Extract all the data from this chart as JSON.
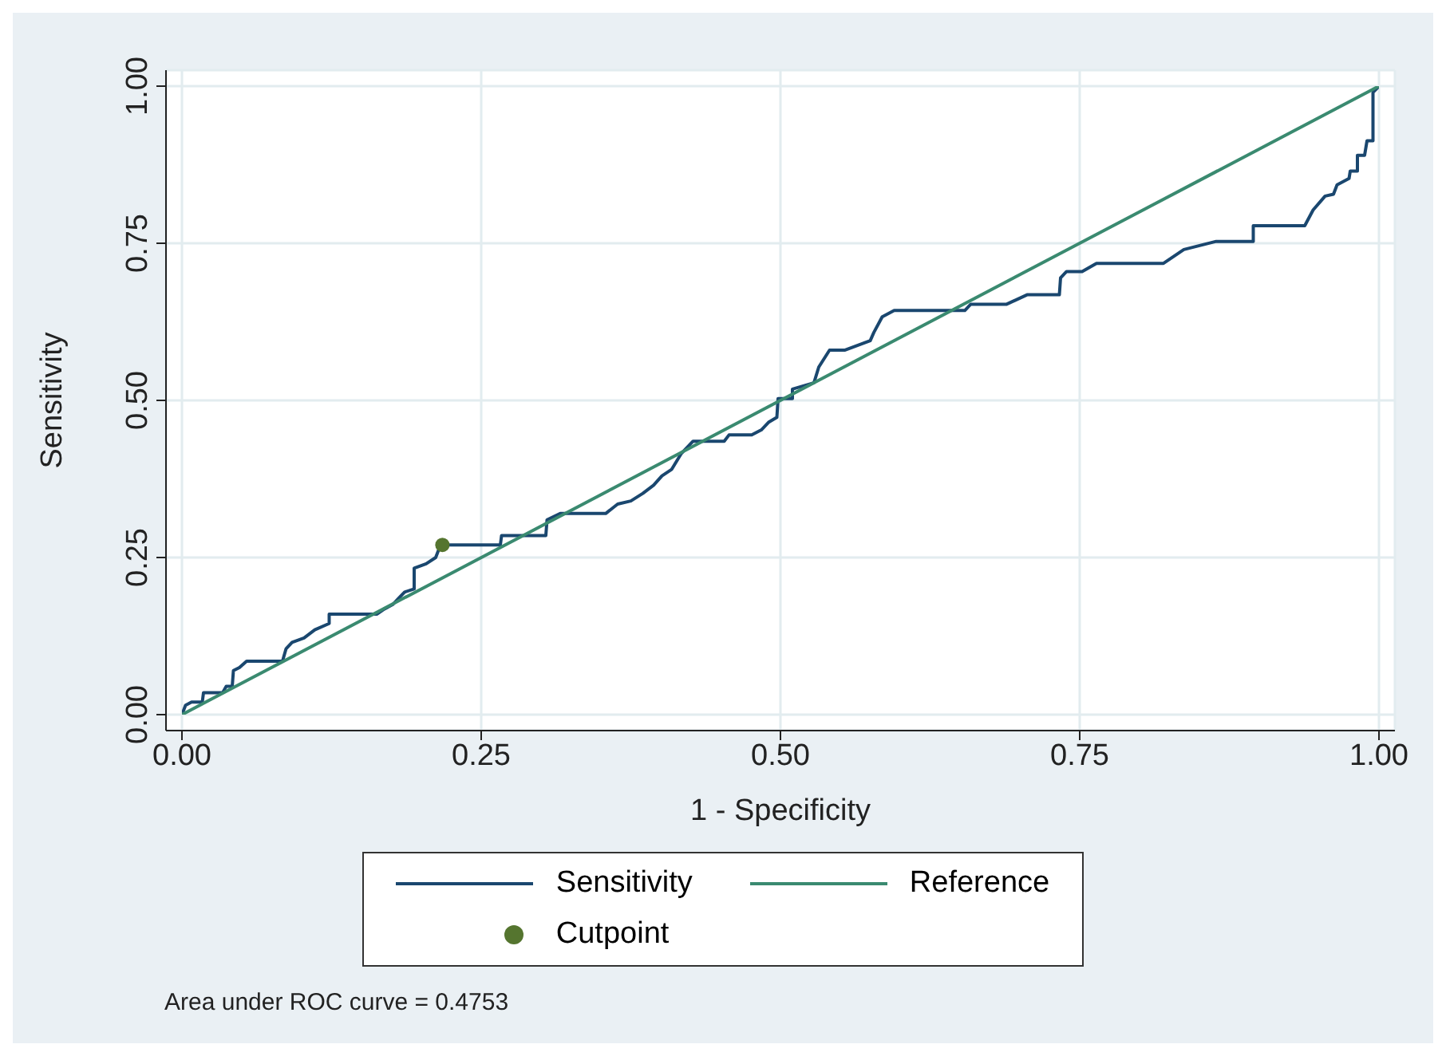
{
  "chart_data": {
    "type": "line",
    "xlabel": "1 - Specificity",
    "ylabel": "Sensitivity",
    "annotations": [
      "Area under ROC curve = 0.4753"
    ],
    "xlim": [
      0,
      1
    ],
    "ylim": [
      0,
      1
    ],
    "xticks": [
      {
        "value": 0,
        "label": "0.00"
      },
      {
        "value": 0.25,
        "label": "0.25"
      },
      {
        "value": 0.5,
        "label": "0.50"
      },
      {
        "value": 0.75,
        "label": "0.75"
      },
      {
        "value": 1,
        "label": "1.00"
      }
    ],
    "yticks": [
      {
        "value": 0,
        "label": "0.00"
      },
      {
        "value": 0.25,
        "label": "0.25"
      },
      {
        "value": 0.5,
        "label": "0.50"
      },
      {
        "value": 0.75,
        "label": "0.75"
      },
      {
        "value": 1,
        "label": "1.00"
      }
    ],
    "grid": true,
    "legend": "bottom",
    "marker": "none",
    "line_style": "solid",
    "series": [
      {
        "name": "Sensitivity",
        "color": "#1a476f",
        "x": [
          0,
          0.003,
          0.008,
          0.017,
          0.018,
          0.034,
          0.037,
          0.042,
          0.043,
          0.048,
          0.054,
          0.084,
          0.087,
          0.092,
          0.102,
          0.111,
          0.123,
          0.123,
          0.163,
          0.169,
          0.176,
          0.181,
          0.186,
          0.194,
          0.194,
          0.204,
          0.212,
          0.216,
          0.266,
          0.267,
          0.304,
          0.305,
          0.316,
          0.354,
          0.364,
          0.375,
          0.385,
          0.394,
          0.401,
          0.409,
          0.417,
          0.427,
          0.453,
          0.457,
          0.476,
          0.484,
          0.49,
          0.497,
          0.498,
          0.51,
          0.51,
          0.528,
          0.532,
          0.541,
          0.554,
          0.575,
          0.578,
          0.585,
          0.595,
          0.654,
          0.659,
          0.689,
          0.706,
          0.733,
          0.734,
          0.739,
          0.752,
          0.764,
          0.82,
          0.837,
          0.864,
          0.895,
          0.895,
          0.938,
          0.945,
          0.955,
          0.962,
          0.965,
          0.975,
          0.976,
          0.982,
          0.982,
          0.988,
          0.99,
          0.995,
          0.995,
          1
        ],
        "values": [
          0,
          0.015,
          0.02,
          0.02,
          0.035,
          0.035,
          0.045,
          0.045,
          0.07,
          0.075,
          0.085,
          0.085,
          0.105,
          0.115,
          0.122,
          0.135,
          0.145,
          0.16,
          0.16,
          0.168,
          0.175,
          0.185,
          0.195,
          0.2,
          0.233,
          0.24,
          0.25,
          0.27,
          0.27,
          0.285,
          0.285,
          0.31,
          0.32,
          0.32,
          0.335,
          0.34,
          0.352,
          0.365,
          0.38,
          0.39,
          0.415,
          0.435,
          0.435,
          0.445,
          0.445,
          0.453,
          0.465,
          0.473,
          0.503,
          0.503,
          0.518,
          0.528,
          0.553,
          0.58,
          0.58,
          0.595,
          0.608,
          0.633,
          0.643,
          0.643,
          0.653,
          0.653,
          0.668,
          0.668,
          0.695,
          0.705,
          0.705,
          0.718,
          0.718,
          0.74,
          0.753,
          0.753,
          0.778,
          0.778,
          0.803,
          0.825,
          0.828,
          0.843,
          0.853,
          0.865,
          0.865,
          0.89,
          0.89,
          0.913,
          0.913,
          0.99,
          1
        ]
      },
      {
        "name": "Reference",
        "color": "#3a8a70",
        "x": [
          0,
          1
        ],
        "values": [
          0,
          1
        ]
      },
      {
        "name": "Cutpoint",
        "type": "scatter",
        "marker": "circle",
        "color": "#55752f",
        "x": [
          0.2176
        ],
        "values": [
          0.27
        ]
      }
    ]
  }
}
